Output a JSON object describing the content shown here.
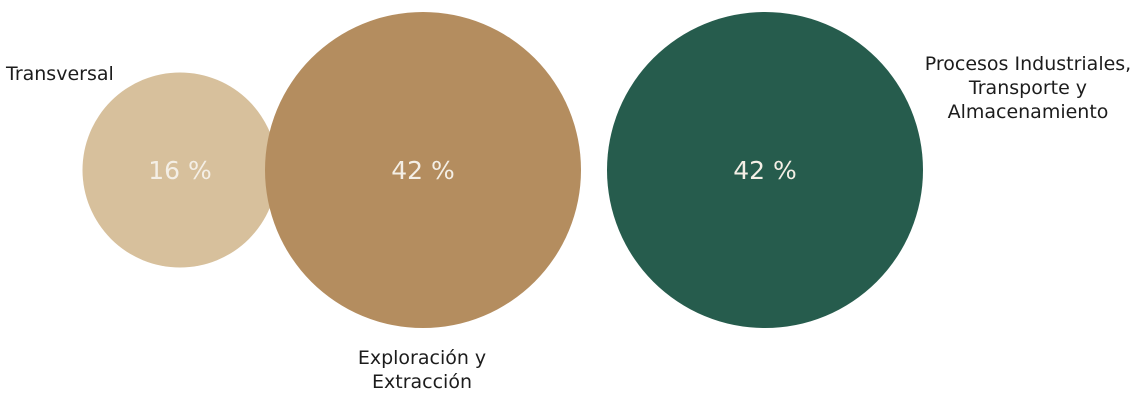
{
  "chart_data": {
    "type": "bubble",
    "title": "",
    "legend": "none",
    "grid": false,
    "unit": "%",
    "categories": [
      [
        "Transversal"
      ],
      [
        "Exploración y",
        "Extracción"
      ],
      [
        "Procesos Industriales,",
        "Transporte y",
        "Almacenamiento"
      ]
    ],
    "values": [
      16,
      42,
      42
    ],
    "value_labels": [
      "16 %",
      "42 %",
      "42 %"
    ],
    "colors": [
      "#d7c09c",
      "#b48d5f",
      "#265c4d"
    ],
    "value_label_color": "#f4efe6"
  }
}
